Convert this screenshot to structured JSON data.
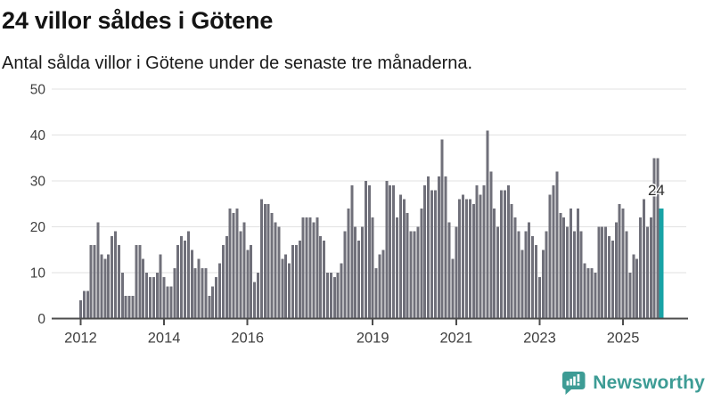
{
  "header": {
    "title": "24 villor såldes i Götene",
    "subtitle": "Antal sålda villor i Götene under de senaste tre månaderna."
  },
  "chart_data": {
    "type": "bar",
    "title": "24 villor såldes i Götene",
    "subtitle": "Antal sålda villor i Götene under de senaste tre månaderna.",
    "frequency": "monthly",
    "x_start": "2012-01",
    "x_end": "2025-12",
    "values": [
      4,
      6,
      6,
      16,
      16,
      21,
      14,
      13,
      14,
      18,
      19,
      16,
      10,
      5,
      5,
      5,
      16,
      16,
      13,
      10,
      9,
      9,
      10,
      14,
      9,
      7,
      7,
      11,
      16,
      18,
      17,
      19,
      15,
      11,
      13,
      11,
      11,
      5,
      7,
      9,
      12,
      16,
      18,
      24,
      23,
      24,
      19,
      21,
      15,
      16,
      8,
      10,
      26,
      25,
      25,
      23,
      21,
      20,
      13,
      14,
      12,
      16,
      16,
      17,
      22,
      22,
      22,
      21,
      22,
      18,
      17,
      10,
      10,
      9,
      10,
      12,
      19,
      24,
      29,
      20,
      17,
      20,
      30,
      29,
      22,
      11,
      14,
      15,
      30,
      29,
      29,
      22,
      27,
      26,
      23,
      19,
      19,
      20,
      24,
      29,
      31,
      28,
      28,
      31,
      39,
      31,
      21,
      13,
      20,
      26,
      27,
      26,
      26,
      25,
      29,
      27,
      29,
      41,
      32,
      24,
      20,
      28,
      28,
      29,
      25,
      22,
      19,
      15,
      19,
      21,
      18,
      16,
      9,
      15,
      19,
      27,
      29,
      32,
      23,
      22,
      20,
      24,
      19,
      24,
      19,
      12,
      11,
      11,
      10,
      20,
      20,
      20,
      18,
      17,
      21,
      25,
      24,
      19,
      10,
      14,
      13,
      22,
      26,
      20,
      22,
      35,
      35,
      24
    ],
    "highlight_index": 167,
    "highlight_value": 24,
    "annotation": {
      "text": "24"
    },
    "y_ticks": [
      0,
      10,
      20,
      30,
      40,
      50
    ],
    "ylim": [
      0,
      50
    ],
    "grid": true,
    "legend": false,
    "x_ticks": [
      {
        "label": "2012",
        "index": 0
      },
      {
        "label": "2014",
        "index": 24
      },
      {
        "label": "2016",
        "index": 48
      },
      {
        "label": "2019",
        "index": 84
      },
      {
        "label": "2021",
        "index": 108
      },
      {
        "label": "2023",
        "index": 132
      },
      {
        "label": "2025",
        "index": 156
      }
    ],
    "colors": {
      "bar": "#70707a",
      "highlight": "#18a3a6",
      "grid": "#e2e2e2",
      "axis": "#4d4d4d",
      "tick_label": "#3f3f3f",
      "annotation": "#2b2b2b"
    }
  },
  "footer": {
    "brand": "Newsworthy",
    "brand_color": "#3d9c95",
    "icon": "bar-chart-speech-bubble"
  }
}
